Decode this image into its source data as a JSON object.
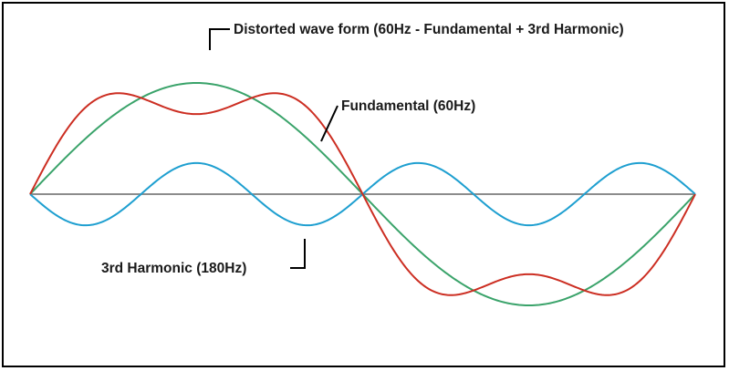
{
  "figure": {
    "labels": {
      "distorted": "Distorted wave form (60Hz - Fundamental + 3rd Harmonic)",
      "fundamental": "Fundamental (60Hz)",
      "harmonic": "3rd Harmonic (180Hz)"
    },
    "colors": {
      "fundamental": "#3aa36a",
      "harmonic": "#1e9fd0",
      "distorted": "#cc2e22",
      "axis": "#8c8c8c",
      "frame": "#000000",
      "leader": "#000000"
    },
    "waves": {
      "fundamental_amplitude": 1.0,
      "harmonic_amplitude": 0.28,
      "cycles_shown": 1
    }
  }
}
